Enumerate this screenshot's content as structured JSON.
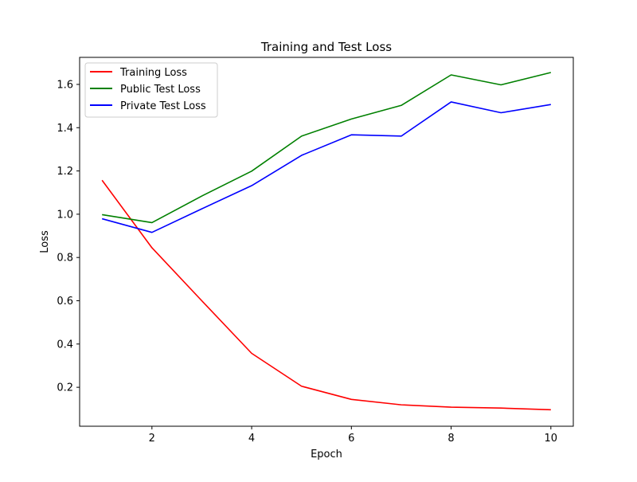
{
  "chart_data": {
    "type": "line",
    "title": "Training and Test Loss",
    "xlabel": "Epoch",
    "ylabel": "Loss",
    "xlim": [
      0.55,
      10.45
    ],
    "ylim": [
      0.02,
      1.725
    ],
    "xticks": [
      2,
      4,
      6,
      8,
      10
    ],
    "yticks": [
      0.2,
      0.4,
      0.6,
      0.8,
      1.0,
      1.2,
      1.4,
      1.6
    ],
    "xtick_labels": [
      "2",
      "4",
      "6",
      "8",
      "10"
    ],
    "ytick_labels": [
      "0.2",
      "0.4",
      "0.6",
      "0.8",
      "1.0",
      "1.2",
      "1.4",
      "1.6"
    ],
    "grid": false,
    "legend": "top-left",
    "x": [
      1,
      2,
      3,
      4,
      5,
      6,
      7,
      8,
      9,
      10
    ],
    "series": [
      {
        "name": "Training Loss",
        "color": "#ff0000",
        "values": [
          1.157,
          0.845,
          0.6,
          0.357,
          0.205,
          0.144,
          0.119,
          0.108,
          0.104,
          0.096
        ]
      },
      {
        "name": "Public Test Loss",
        "color": "#008000",
        "values": [
          0.998,
          0.961,
          1.084,
          1.199,
          1.361,
          1.44,
          1.503,
          1.644,
          1.598,
          1.655
        ]
      },
      {
        "name": "Private Test Loss",
        "color": "#0000ff",
        "values": [
          0.979,
          0.916,
          1.025,
          1.132,
          1.272,
          1.367,
          1.361,
          1.519,
          1.469,
          1.507
        ]
      }
    ]
  }
}
